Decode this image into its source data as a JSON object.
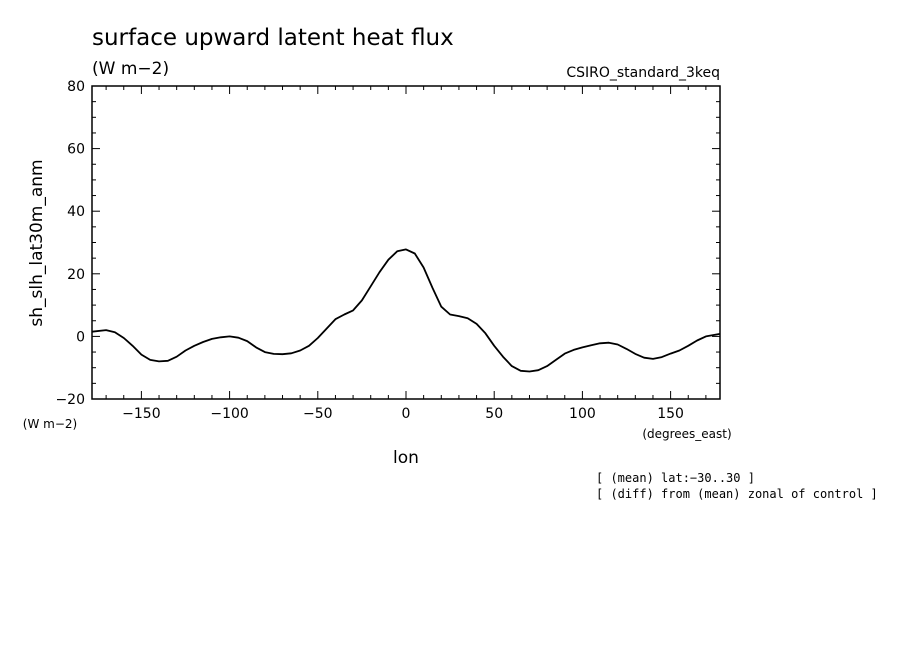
{
  "header": {
    "title": "surface upward latent heat flux",
    "units": "(W m−2)",
    "model": "CSIRO_standard_3keq"
  },
  "axes": {
    "ylabel": "sh_slh_lat30m_anm",
    "y_units": "(W m−2)",
    "xlabel": "lon",
    "x_units": "(degrees_east)"
  },
  "notes": [
    "[ (mean) lat:−30..30 ]",
    "[ (diff) from (mean) zonal of control ]"
  ],
  "chart_data": {
    "type": "line",
    "title": "surface upward latent heat flux",
    "xlabel": "lon",
    "ylabel": "sh_slh_lat30m_anm",
    "xlim": [
      -178,
      178
    ],
    "ylim": [
      -20,
      80
    ],
    "xticks": [
      -150,
      -100,
      -50,
      0,
      50,
      100,
      150
    ],
    "xtick_labels": [
      "−150",
      "−100",
      "−50",
      "0",
      "50",
      "100",
      "150"
    ],
    "yticks": [
      -20,
      0,
      20,
      40,
      60,
      80
    ],
    "ytick_labels": [
      "−20",
      "0",
      "20",
      "40",
      "60",
      "80"
    ],
    "grid": false,
    "series": [
      {
        "x": [
          -178,
          -170,
          -165,
          -160,
          -155,
          -150,
          -145,
          -140,
          -135,
          -130,
          -125,
          -120,
          -115,
          -110,
          -105,
          -100,
          -95,
          -90,
          -85,
          -80,
          -75,
          -70,
          -65,
          -60,
          -55,
          -50,
          -45,
          -40,
          -35,
          -30,
          -25,
          -20,
          -15,
          -10,
          -5,
          0,
          5,
          10,
          15,
          20,
          25,
          30,
          35,
          40,
          45,
          50,
          55,
          60,
          65,
          70,
          75,
          80,
          85,
          90,
          95,
          100,
          105,
          110,
          115,
          120,
          125,
          130,
          135,
          140,
          145,
          150,
          155,
          160,
          165,
          170,
          178
        ],
        "y": [
          1.5,
          2,
          1.3,
          -0.5,
          -3,
          -5.8,
          -7.5,
          -8,
          -7.8,
          -6.5,
          -4.5,
          -3,
          -1.8,
          -0.8,
          -0.3,
          0,
          -0.4,
          -1.5,
          -3.5,
          -5,
          -5.6,
          -5.7,
          -5.4,
          -4.5,
          -3,
          -0.5,
          2.5,
          5.5,
          7,
          8.3,
          11.5,
          16,
          20.5,
          24.5,
          27.2,
          27.8,
          26.5,
          22,
          15.5,
          9.5,
          7,
          6.5,
          5.8,
          4,
          1,
          -3,
          -6.5,
          -9.5,
          -11,
          -11.2,
          -10.8,
          -9.5,
          -7.5,
          -5.5,
          -4.3,
          -3.5,
          -2.8,
          -2.2,
          -2,
          -2.6,
          -4,
          -5.6,
          -6.8,
          -7.2,
          -6.6,
          -5.5,
          -4.5,
          -3,
          -1.3,
          0,
          0.8
        ]
      }
    ]
  }
}
